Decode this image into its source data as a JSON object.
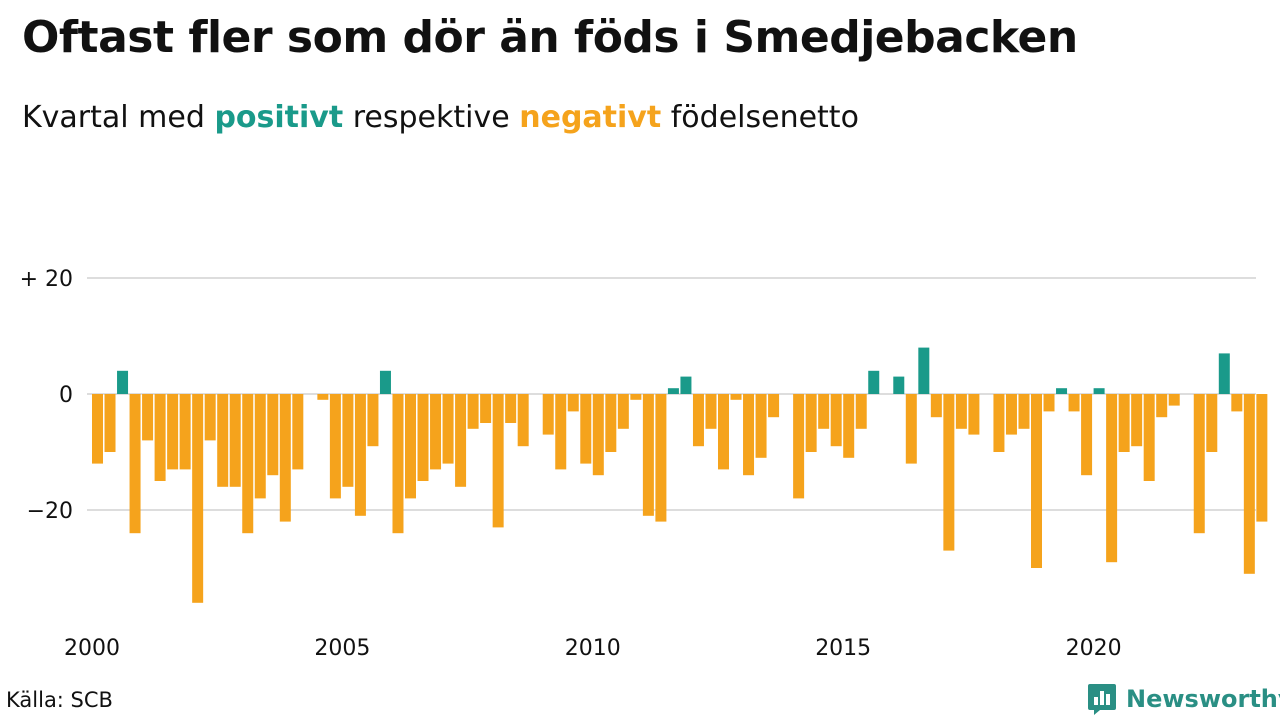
{
  "header": {
    "title": "Oftast fler som dör än föds i Smedjebacken",
    "subtitle_prefix": "Kvartal med",
    "subtitle_positive": "positivt",
    "subtitle_middle": "respektive",
    "subtitle_negative": "negativt",
    "subtitle_suffix": "födelsenetto"
  },
  "footer": {
    "source": "Källa: SCB",
    "brand": "Newsworthy"
  },
  "colors": {
    "positive": "#1a9a8a",
    "negative": "#f5a31c",
    "grid": "#dddddd",
    "brand": "#2a8f84"
  },
  "chart_data": {
    "type": "bar",
    "title": "Oftast fler som dör än föds i Smedjebacken",
    "subtitle": "Kvartal med positivt respektive negativt födelsenetto",
    "ylim": [
      -37,
      21
    ],
    "y_ticks": [
      20,
      0,
      -20
    ],
    "y_tick_labels": [
      "+ 20",
      "0",
      "−20"
    ],
    "x_ticks": [
      2000,
      2005,
      2010,
      2015,
      2020
    ],
    "grid": true,
    "start_year": 2000,
    "values": [
      -12,
      -10,
      4,
      -24,
      -8,
      -15,
      -13,
      -13,
      -36,
      -8,
      -16,
      -16,
      -24,
      -18,
      -14,
      -22,
      -13,
      0,
      -1,
      -18,
      -16,
      -21,
      -9,
      4,
      -24,
      -18,
      -15,
      -13,
      -12,
      -16,
      -6,
      -5,
      -23,
      -5,
      -9,
      0,
      -7,
      -13,
      -3,
      -12,
      -14,
      -10,
      -6,
      -1,
      -21,
      -22,
      1,
      3,
      -9,
      -6,
      -13,
      -1,
      -14,
      -11,
      -4,
      0,
      -18,
      -10,
      -6,
      -9,
      -11,
      -6,
      4,
      0,
      3,
      -12,
      8,
      -4,
      -27,
      -6,
      -7,
      0,
      -10,
      -7,
      -6,
      -30,
      -3,
      1,
      -3,
      -14,
      1,
      -29,
      -10,
      -9,
      -15,
      -4,
      -2,
      0,
      -24,
      -10,
      7,
      -3,
      -31,
      -22
    ]
  }
}
